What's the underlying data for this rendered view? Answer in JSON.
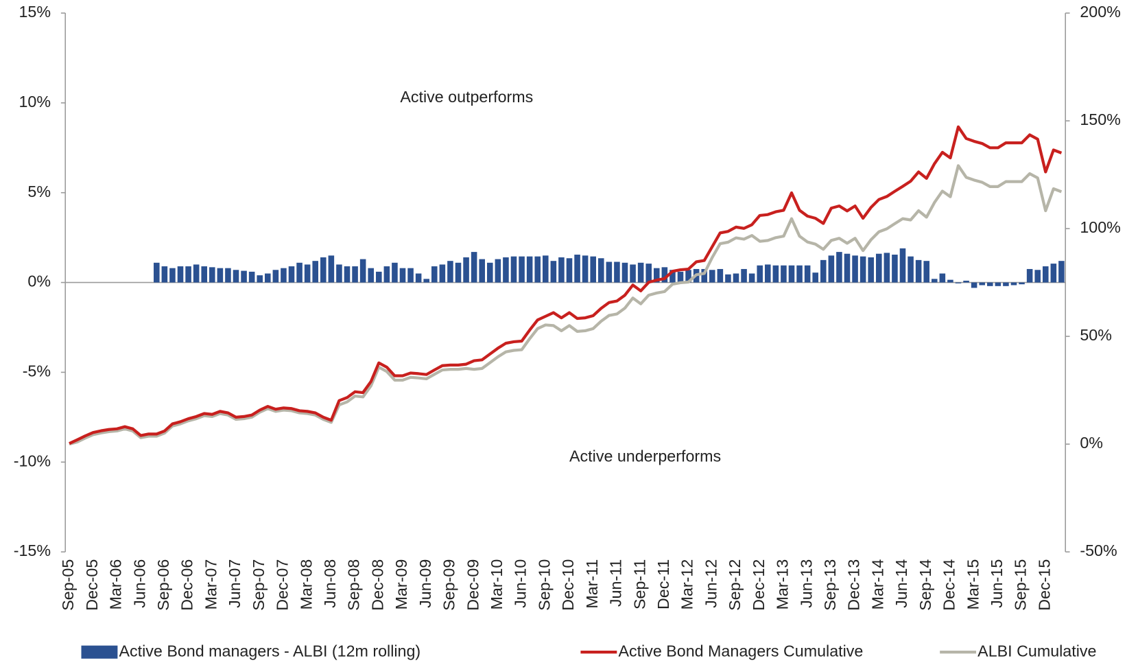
{
  "chart_data": {
    "type": "combo",
    "annotations": [
      "Active outperforms",
      "Active underperforms"
    ],
    "categories": [
      "Sep-05",
      null,
      null,
      "Dec-05",
      null,
      null,
      "Mar-06",
      null,
      null,
      "Jun-06",
      null,
      null,
      "Sep-06",
      null,
      null,
      "Dec-06",
      null,
      null,
      "Mar-07",
      null,
      null,
      "Jun-07",
      null,
      null,
      "Sep-07",
      null,
      null,
      "Dec-07",
      null,
      null,
      "Mar-08",
      null,
      null,
      "Jun-08",
      null,
      null,
      "Sep-08",
      null,
      null,
      "Dec-08",
      null,
      null,
      "Mar-09",
      null,
      null,
      "Jun-09",
      null,
      null,
      "Sep-09",
      null,
      null,
      "Dec-09",
      null,
      null,
      "Mar-10",
      null,
      null,
      "Jun-10",
      null,
      null,
      "Sep-10",
      null,
      null,
      "Dec-10",
      null,
      null,
      "Mar-11",
      null,
      null,
      "Jun-11",
      null,
      null,
      "Sep-11",
      null,
      null,
      "Dec-11",
      null,
      null,
      "Mar-12",
      null,
      null,
      "Jun-12",
      null,
      null,
      "Sep-12",
      null,
      null,
      "Dec-12",
      null,
      null,
      "Mar-13",
      null,
      null,
      "Jun-13",
      null,
      null,
      "Sep-13",
      null,
      null,
      "Dec-13",
      null,
      null,
      "Mar-14",
      null,
      null,
      "Jun-14",
      null,
      null,
      "Sep-14",
      null,
      null,
      "Dec-14",
      null,
      null,
      "Mar-15",
      null,
      null,
      "Jun-15",
      null,
      null,
      "Sep-15",
      null,
      null,
      "Dec-15",
      null,
      null
    ],
    "ylim": [
      -15,
      15
    ],
    "yticks": [
      {
        "value": -15,
        "label": "-15%"
      },
      {
        "value": -10,
        "label": "-10%"
      },
      {
        "value": -5,
        "label": "-5%"
      },
      {
        "value": 0,
        "label": "0%"
      },
      {
        "value": 5,
        "label": "5%"
      },
      {
        "value": 10,
        "label": "10%"
      },
      {
        "value": 15,
        "label": "15%"
      }
    ],
    "y2lim": [
      -50,
      200
    ],
    "y2ticks": [
      {
        "value": -50,
        "label": "-50%"
      },
      {
        "value": 0,
        "label": "0%"
      },
      {
        "value": 50,
        "label": "50%"
      },
      {
        "value": 100,
        "label": "100%"
      },
      {
        "value": 150,
        "label": "150%"
      },
      {
        "value": 200,
        "label": "200%"
      }
    ],
    "series": [
      {
        "name": "Active Bond managers - ALBI (12m rolling)",
        "type": "bar",
        "color": "#2b5191",
        "values": [
          null,
          null,
          null,
          null,
          null,
          null,
          null,
          null,
          null,
          null,
          null,
          1.1,
          0.9,
          0.8,
          0.9,
          0.9,
          1.0,
          0.9,
          0.85,
          0.8,
          0.8,
          0.7,
          0.65,
          0.6,
          0.4,
          0.5,
          0.7,
          0.8,
          0.9,
          1.1,
          1.0,
          1.2,
          1.4,
          1.5,
          1.0,
          0.9,
          0.9,
          1.3,
          0.8,
          0.6,
          0.9,
          1.1,
          0.8,
          0.8,
          0.5,
          0.2,
          0.9,
          1.0,
          1.2,
          1.1,
          1.4,
          1.7,
          1.3,
          1.1,
          1.3,
          1.4,
          1.45,
          1.45,
          1.45,
          1.45,
          1.5,
          1.2,
          1.4,
          1.35,
          1.55,
          1.5,
          1.45,
          1.35,
          1.15,
          1.15,
          1.1,
          1.0,
          1.1,
          1.05,
          0.8,
          0.85,
          0.7,
          0.6,
          0.7,
          0.75,
          0.75,
          0.7,
          0.75,
          0.45,
          0.5,
          0.75,
          0.5,
          0.95,
          1.0,
          0.95,
          0.95,
          0.95,
          0.95,
          0.95,
          0.55,
          1.25,
          1.5,
          1.7,
          1.6,
          1.5,
          1.45,
          1.4,
          1.6,
          1.65,
          1.55,
          1.9,
          1.45,
          1.25,
          1.2,
          0.2,
          0.5,
          0.15,
          -0.05,
          0.1,
          -0.3,
          -0.15,
          -0.2,
          -0.2,
          -0.2,
          -0.15,
          -0.1,
          0.75,
          0.7,
          0.9,
          1.05,
          1.2
        ]
      },
      {
        "name": "Active Bond Managers Cumulative",
        "type": "line",
        "axis": "y2",
        "color": "#c8201e",
        "values": [
          0.3,
          2.0,
          3.8,
          5.4,
          6.2,
          6.8,
          7.1,
          8.1,
          7.1,
          4.0,
          4.7,
          4.7,
          6.1,
          9.4,
          10.4,
          11.8,
          12.8,
          14.2,
          13.8,
          15.2,
          14.5,
          12.5,
          12.8,
          13.5,
          15.8,
          17.5,
          16.2,
          16.8,
          16.5,
          15.5,
          15.2,
          14.5,
          12.5,
          11.1,
          20.2,
          21.6,
          24.3,
          23.9,
          29.0,
          37.7,
          35.7,
          31.7,
          31.7,
          33.0,
          32.7,
          32.3,
          34.4,
          36.4,
          36.7,
          36.7,
          37.1,
          38.7,
          39.1,
          41.8,
          44.5,
          46.8,
          47.5,
          47.8,
          52.9,
          57.6,
          59.3,
          61.0,
          58.6,
          61.0,
          58.3,
          58.6,
          59.6,
          63.0,
          65.7,
          66.4,
          69.1,
          73.8,
          71.1,
          75.1,
          76.1,
          76.8,
          80.2,
          80.9,
          81.2,
          84.6,
          85.2,
          91.6,
          98.0,
          98.7,
          100.7,
          100.1,
          101.8,
          106.1,
          106.5,
          107.8,
          108.5,
          116.6,
          108.5,
          105.8,
          104.8,
          102.4,
          109.5,
          110.5,
          108.2,
          110.5,
          104.8,
          109.8,
          113.5,
          114.9,
          117.3,
          119.6,
          122.0,
          126.3,
          123.3,
          130.1,
          135.4,
          132.8,
          147.2,
          141.8,
          140.5,
          139.5,
          137.5,
          137.5,
          139.8,
          139.8,
          139.8,
          143.5,
          141.5,
          126.3,
          136.5,
          135.1
        ]
      },
      {
        "name": "ALBI Cumulative",
        "type": "line",
        "axis": "y2",
        "color": "#b6b5a8",
        "values": [
          0,
          1.0,
          2.8,
          4.4,
          5.2,
          5.8,
          6.1,
          7.1,
          6.1,
          3.0,
          3.7,
          3.7,
          5.1,
          8.4,
          9.4,
          10.8,
          11.8,
          13.2,
          12.8,
          14.2,
          13.5,
          11.5,
          11.8,
          12.5,
          14.8,
          16.5,
          15.2,
          15.8,
          15.5,
          14.5,
          14.2,
          13.5,
          11.5,
          10.1,
          18.2,
          19.6,
          22.3,
          21.9,
          27.0,
          35.7,
          33.7,
          29.7,
          29.7,
          31.0,
          30.7,
          30.3,
          32.4,
          34.4,
          34.7,
          34.7,
          35.1,
          34.7,
          35.1,
          37.8,
          40.5,
          42.8,
          43.5,
          43.8,
          48.9,
          53.6,
          55.3,
          55.0,
          52.6,
          55.0,
          52.3,
          52.6,
          53.6,
          57.0,
          59.7,
          60.4,
          63.1,
          67.8,
          65.1,
          69.1,
          70.1,
          70.8,
          74.2,
          74.9,
          75.2,
          78.6,
          79.2,
          86.6,
          93.0,
          93.7,
          95.7,
          95.1,
          96.8,
          94.1,
          94.5,
          95.8,
          96.5,
          104.6,
          96.5,
          93.8,
          92.8,
          90.4,
          94.5,
          95.5,
          93.2,
          95.5,
          89.8,
          94.8,
          98.5,
          99.9,
          102.3,
          104.6,
          104.0,
          108.3,
          105.3,
          112.1,
          117.4,
          114.8,
          129.2,
          123.8,
          122.5,
          121.5,
          119.5,
          119.5,
          121.8,
          121.8,
          121.8,
          125.5,
          123.5,
          108.3,
          118.5,
          117.1
        ]
      }
    ]
  }
}
